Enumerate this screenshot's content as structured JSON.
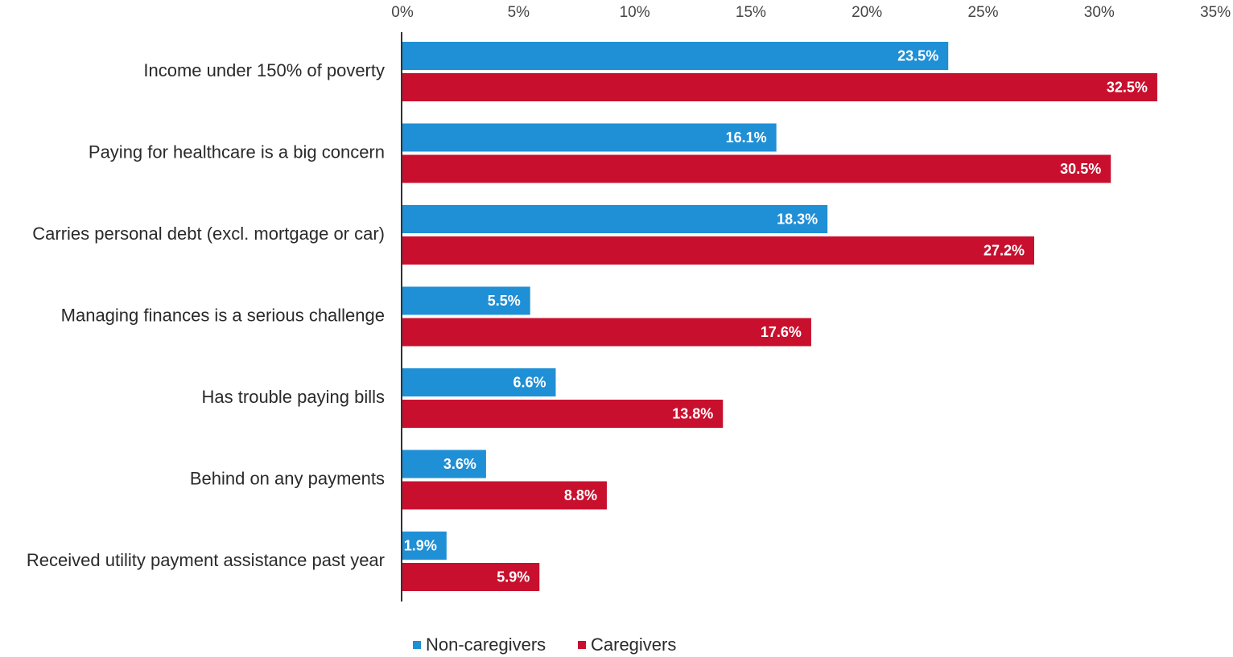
{
  "chart_data": {
    "type": "bar",
    "orientation": "horizontal",
    "categories": [
      "Income under 150% of poverty",
      "Paying for healthcare is a big concern",
      "Carries personal debt (excl. mortgage or car)",
      "Managing finances is a serious challenge",
      "Has trouble paying bills",
      "Behind on any payments",
      "Received utility payment assistance past year"
    ],
    "series": [
      {
        "name": "Non-caregivers",
        "color": "#1f8fd6",
        "values": [
          23.5,
          16.1,
          18.3,
          5.5,
          6.6,
          3.6,
          1.9
        ],
        "labels": [
          "23.5%",
          "16.1%",
          "18.3%",
          "5.5%",
          "6.6%",
          "3.6%",
          "1.9%"
        ]
      },
      {
        "name": "Caregivers",
        "color": "#c8102e",
        "values": [
          32.5,
          30.5,
          27.2,
          17.6,
          13.8,
          8.8,
          5.9
        ],
        "labels": [
          "32.5%",
          "30.5%",
          "27.2%",
          "17.6%",
          "13.8%",
          "8.8%",
          "5.9%"
        ]
      }
    ],
    "xlim": [
      0,
      35
    ],
    "x_ticks": [
      0,
      5,
      10,
      15,
      20,
      25,
      30,
      35
    ],
    "x_tick_labels": [
      "0%",
      "5%",
      "10%",
      "15%",
      "20%",
      "25%",
      "30%",
      "35%"
    ],
    "x_axis_position": "top",
    "grid": false,
    "legend_position": "bottom"
  }
}
